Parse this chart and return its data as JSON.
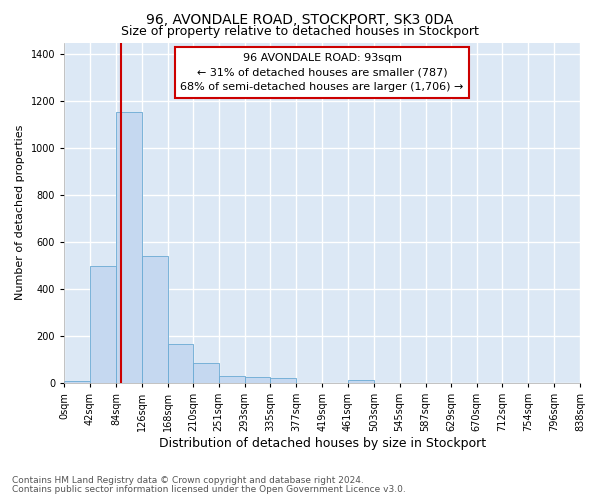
{
  "title": "96, AVONDALE ROAD, STOCKPORT, SK3 0DA",
  "subtitle": "Size of property relative to detached houses in Stockport",
  "xlabel": "Distribution of detached houses by size in Stockport",
  "ylabel": "Number of detached properties",
  "property_size": 93,
  "bar_edges": [
    0,
    42,
    84,
    126,
    168,
    210,
    251,
    293,
    335,
    377,
    419,
    461,
    503,
    545,
    587,
    629,
    670,
    712,
    754,
    796,
    838
  ],
  "bar_heights": [
    10,
    500,
    1155,
    540,
    165,
    85,
    30,
    25,
    20,
    0,
    0,
    12,
    0,
    0,
    0,
    0,
    0,
    0,
    0,
    0
  ],
  "bar_color": "#c5d8f0",
  "bar_edgecolor": "#6aaad4",
  "red_line_x": 93,
  "ylim": [
    0,
    1450
  ],
  "yticks": [
    0,
    200,
    400,
    600,
    800,
    1000,
    1200,
    1400
  ],
  "annotation_title": "96 AVONDALE ROAD: 93sqm",
  "annotation_line1": "← 31% of detached houses are smaller (787)",
  "annotation_line2": "68% of semi-detached houses are larger (1,706) →",
  "annotation_box_color": "#ffffff",
  "annotation_box_edgecolor": "#cc0000",
  "bg_color": "#dce8f5",
  "grid_color": "#ffffff",
  "fig_bg_color": "#ffffff",
  "footer_line1": "Contains HM Land Registry data © Crown copyright and database right 2024.",
  "footer_line2": "Contains public sector information licensed under the Open Government Licence v3.0.",
  "title_fontsize": 10,
  "subtitle_fontsize": 9,
  "xlabel_fontsize": 9,
  "ylabel_fontsize": 8,
  "tick_fontsize": 7,
  "annotation_fontsize": 8,
  "footer_fontsize": 6.5
}
